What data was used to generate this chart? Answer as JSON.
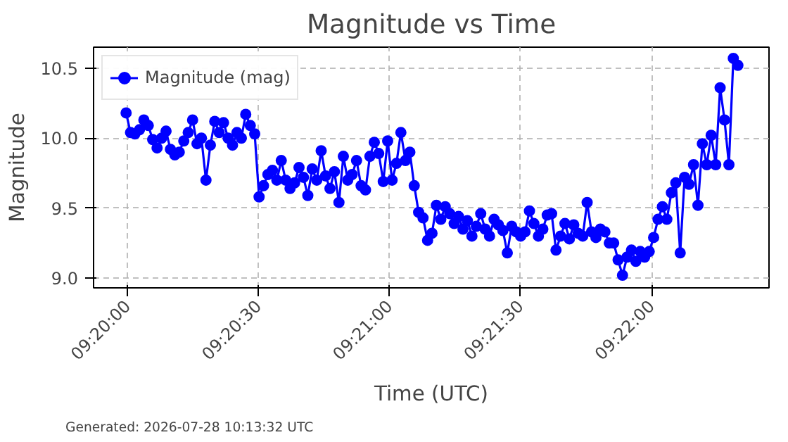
{
  "chart_data": {
    "type": "line",
    "title": "Magnitude vs Time",
    "xlabel": "Time (UTC)",
    "ylabel": "Magnitude",
    "annotations": [
      "Generated: 2026-07-28 10:13:32 UTC"
    ],
    "x": [
      9.33324,
      9.33352,
      9.3338,
      9.33409,
      9.33437,
      9.33465,
      9.33493,
      9.33521,
      9.3355,
      9.33578,
      9.33606,
      9.33634,
      9.33662,
      9.33691,
      9.33719,
      9.33747,
      9.33775,
      9.33803,
      9.33832,
      9.3386,
      9.33888,
      9.33916,
      9.33944,
      9.33973,
      9.34001,
      9.34029,
      9.34057,
      9.34085,
      9.34114,
      9.34142,
      9.3417,
      9.34198,
      9.34226,
      9.34255,
      9.34283,
      9.34311,
      9.34339,
      9.34367,
      9.34396,
      9.34424,
      9.34452,
      9.3448,
      9.34508,
      9.34537,
      9.34565,
      9.34593,
      9.34621,
      9.34649,
      9.34678,
      9.34706,
      9.34734,
      9.34762,
      9.3479,
      9.34819,
      9.34847,
      9.34875,
      9.34903,
      9.34931,
      9.3496,
      9.34988,
      9.35016,
      9.35044,
      9.35072,
      9.35101,
      9.35129,
      9.35157,
      9.35185,
      9.35213,
      9.35242,
      9.3527,
      9.35298,
      9.35326,
      9.35354,
      9.35383,
      9.35411,
      9.35439,
      9.35467,
      9.35495,
      9.35524,
      9.35552,
      9.3558,
      9.35608,
      9.35636,
      9.35665,
      9.35693,
      9.35721,
      9.35749,
      9.35777,
      9.35806,
      9.35834,
      9.35862,
      9.3589,
      9.35918,
      9.35947,
      9.35975,
      9.36003,
      9.36031,
      9.36059,
      9.36088,
      9.36116,
      9.36144,
      9.36172,
      9.362,
      9.36229,
      9.36257,
      9.36285,
      9.36313,
      9.36341,
      9.3637,
      9.36398,
      9.36426,
      9.36454,
      9.36482,
      9.36511,
      9.36539,
      9.36567,
      9.36595,
      9.36623,
      9.36652,
      9.3668,
      9.36708,
      9.36736,
      9.36764,
      9.36793,
      9.36821,
      9.36849,
      9.36877,
      9.36905,
      9.36934,
      9.36962,
      9.3699,
      9.37018,
      9.37046,
      9.37075,
      9.37103,
      9.37131,
      9.37159,
      9.37187,
      9.37216
    ],
    "series": [
      {
        "name": "Magnitude (mag)",
        "color": "#0000ff",
        "values": [
          10.18,
          10.04,
          10.03,
          10.06,
          10.13,
          10.09,
          9.99,
          9.93,
          10.0,
          10.05,
          9.92,
          9.88,
          9.9,
          9.98,
          10.04,
          10.13,
          9.96,
          10.0,
          9.7,
          9.95,
          10.12,
          10.04,
          10.11,
          10.0,
          9.95,
          10.04,
          10.0,
          10.17,
          10.09,
          10.03,
          9.58,
          9.66,
          9.74,
          9.77,
          9.7,
          9.84,
          9.7,
          9.64,
          9.68,
          9.79,
          9.72,
          9.59,
          9.78,
          9.7,
          9.91,
          9.73,
          9.64,
          9.76,
          9.54,
          9.87,
          9.7,
          9.74,
          9.84,
          9.66,
          9.63,
          9.87,
          9.97,
          9.89,
          9.69,
          9.98,
          9.7,
          9.82,
          10.04,
          9.84,
          9.9,
          9.66,
          9.47,
          9.43,
          9.27,
          9.32,
          9.52,
          9.42,
          9.51,
          9.46,
          9.39,
          9.44,
          9.35,
          9.41,
          9.3,
          9.37,
          9.46,
          9.35,
          9.3,
          9.42,
          9.38,
          9.34,
          9.18,
          9.37,
          9.33,
          9.3,
          9.33,
          9.48,
          9.39,
          9.3,
          9.35,
          9.45,
          9.46,
          9.2,
          9.3,
          9.39,
          9.28,
          9.38,
          9.32,
          9.3,
          9.54,
          9.33,
          9.29,
          9.35,
          9.33,
          9.25,
          9.25,
          9.13,
          9.02,
          9.15,
          9.2,
          9.12,
          9.19,
          9.15,
          9.19,
          9.29,
          9.42,
          9.51,
          9.42,
          9.61,
          9.68,
          9.18,
          9.72,
          9.67,
          9.81,
          9.52,
          9.96,
          9.81,
          10.02,
          9.81,
          10.36,
          10.13,
          9.81,
          10.57,
          10.52
        ]
      }
    ],
    "xlim": [
      9.33117,
      9.37414
    ],
    "ylim": [
      8.93,
      10.65
    ],
    "xticks": [
      {
        "value": 9.333333,
        "label": "09:20:00"
      },
      {
        "value": 9.341667,
        "label": "09:20:30"
      },
      {
        "value": 9.35,
        "label": "09:21:00"
      },
      {
        "value": 9.358333,
        "label": "09:21:30"
      },
      {
        "value": 9.366667,
        "label": "09:22:00"
      }
    ],
    "yticks": [
      {
        "value": 9,
        "label": "9.0"
      },
      {
        "value": 9.5,
        "label": "9.5"
      },
      {
        "value": 10,
        "label": "10.0"
      },
      {
        "value": 10.5,
        "label": "10.5"
      }
    ],
    "grid": true,
    "legend": "top left",
    "marker": "circle",
    "line_style": "solid"
  }
}
